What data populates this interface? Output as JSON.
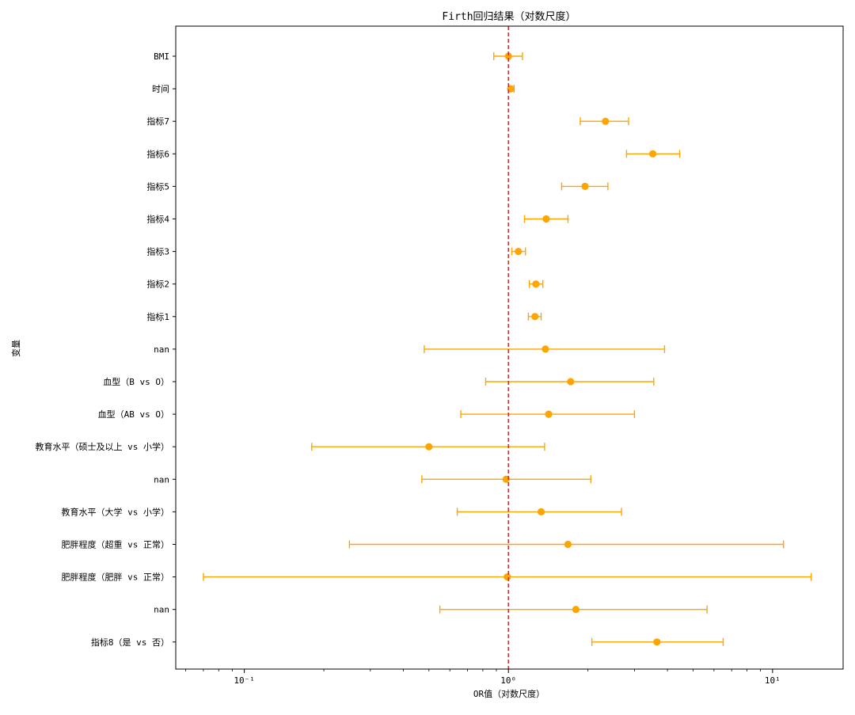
{
  "chart_data": {
    "type": "forest",
    "title": "Firth回归结果（对数尺度）",
    "xlabel": "OR值（对数尺度）",
    "ylabel": "变量",
    "x_scale": "log",
    "xlim": [
      0.055,
      18.5
    ],
    "x_ticks": [
      {
        "value": 0.1,
        "label": "10⁻¹"
      },
      {
        "value": 1,
        "label": "10⁰"
      },
      {
        "value": 10,
        "label": "10¹"
      }
    ],
    "reference_line": 1,
    "marker_color": "#ffa500",
    "reference_color": "#d62728",
    "rows": [
      {
        "label": "BMI",
        "or": 1.0,
        "lower": 0.88,
        "upper": 1.13
      },
      {
        "label": "时间",
        "or": 1.02,
        "lower": 1.0,
        "upper": 1.05
      },
      {
        "label": "指标7",
        "or": 2.33,
        "lower": 1.87,
        "upper": 2.85
      },
      {
        "label": "指标6",
        "or": 3.52,
        "lower": 2.8,
        "upper": 4.45
      },
      {
        "label": "指标5",
        "or": 1.95,
        "lower": 1.59,
        "upper": 2.38
      },
      {
        "label": "指标4",
        "or": 1.39,
        "lower": 1.15,
        "upper": 1.68
      },
      {
        "label": "指标3",
        "or": 1.09,
        "lower": 1.03,
        "upper": 1.16
      },
      {
        "label": "指标2",
        "or": 1.27,
        "lower": 1.2,
        "upper": 1.35
      },
      {
        "label": "指标1",
        "or": 1.26,
        "lower": 1.19,
        "upper": 1.33
      },
      {
        "label": "nan",
        "or": 1.38,
        "lower": 0.48,
        "upper": 3.9
      },
      {
        "label": "血型（B vs O）",
        "or": 1.72,
        "lower": 0.82,
        "upper": 3.55
      },
      {
        "label": "血型（AB vs O）",
        "or": 1.42,
        "lower": 0.66,
        "upper": 3.0
      },
      {
        "label": "教育水平（硕士及以上 vs 小学）",
        "or": 0.5,
        "lower": 0.18,
        "upper": 1.37
      },
      {
        "label": "nan",
        "or": 0.98,
        "lower": 0.47,
        "upper": 2.05
      },
      {
        "label": "教育水平（大学 vs 小学）",
        "or": 1.33,
        "lower": 0.64,
        "upper": 2.68
      },
      {
        "label": "肥胖程度（超重 vs 正常）",
        "or": 1.68,
        "lower": 0.25,
        "upper": 11.0
      },
      {
        "label": "肥胖程度（肥胖 vs 正常）",
        "or": 0.99,
        "lower": 0.07,
        "upper": 14.0
      },
      {
        "label": "nan",
        "or": 1.8,
        "lower": 0.55,
        "upper": 5.65
      },
      {
        "label": "指标8（是 vs 否）",
        "or": 3.65,
        "lower": 2.07,
        "upper": 6.5
      }
    ]
  }
}
